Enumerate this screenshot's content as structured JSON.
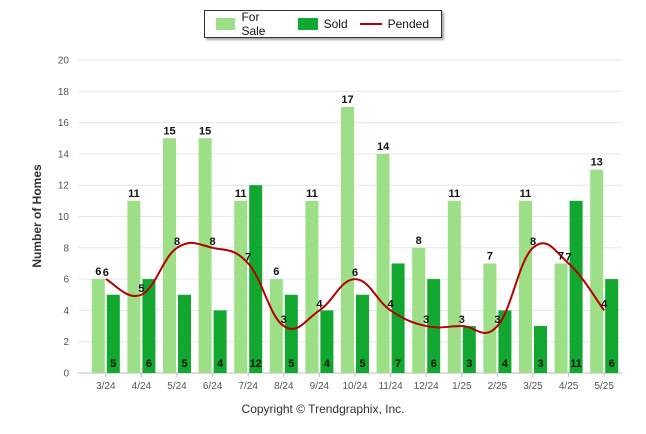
{
  "legend": [
    {
      "label": "For Sale",
      "color": "#9cdf86",
      "kind": "bar"
    },
    {
      "label": "Sold",
      "color": "#12a82f",
      "kind": "bar"
    },
    {
      "label": "Pended",
      "color": "#b40000",
      "kind": "line"
    }
  ],
  "footer": "Copyright © Trendgraphix, Inc.",
  "chart_data": {
    "type": "bar",
    "ylabel": "Number of Homes",
    "xlabel": "",
    "ylim": [
      0,
      20
    ],
    "yticks": [
      0,
      2,
      4,
      6,
      8,
      10,
      12,
      14,
      16,
      18,
      20
    ],
    "grid": true,
    "legend_position": "top",
    "categories": [
      "3/24",
      "4/24",
      "5/24",
      "6/24",
      "7/24",
      "8/24",
      "9/24",
      "10/24",
      "11/24",
      "12/24",
      "1/25",
      "2/25",
      "3/25",
      "4/25",
      "5/25"
    ],
    "series": [
      {
        "name": "For Sale",
        "type": "bar",
        "color": "#9cdf86",
        "values": [
          6,
          11,
          15,
          15,
          11,
          6,
          11,
          17,
          14,
          8,
          11,
          7,
          11,
          7,
          13
        ]
      },
      {
        "name": "Sold",
        "type": "bar",
        "color": "#12a82f",
        "values": [
          5,
          6,
          5,
          4,
          12,
          5,
          4,
          5,
          7,
          6,
          3,
          4,
          3,
          11,
          6
        ]
      },
      {
        "name": "Pended",
        "type": "line",
        "color": "#b40000",
        "values": [
          6,
          5,
          8,
          8,
          7,
          3,
          4,
          6,
          4,
          3,
          3,
          3,
          8,
          7,
          4
        ]
      }
    ]
  }
}
